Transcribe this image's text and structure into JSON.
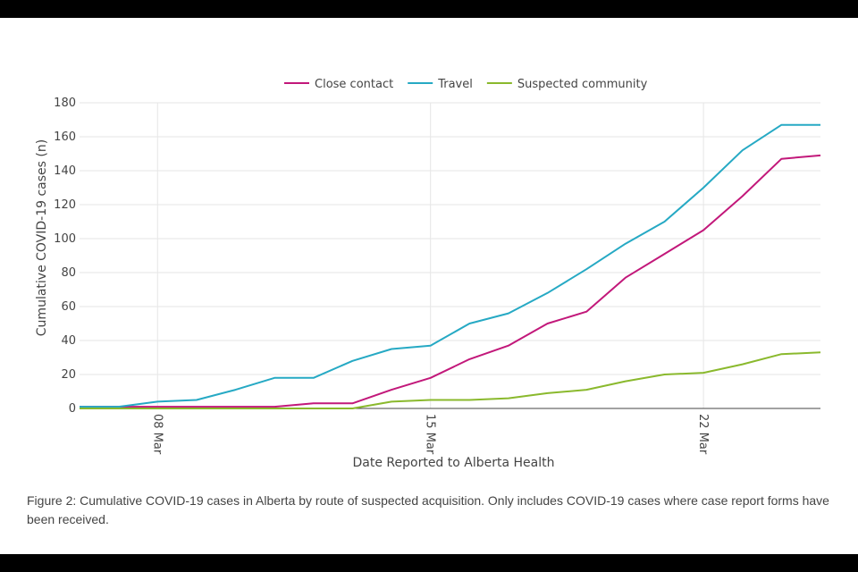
{
  "chart_data": {
    "type": "line",
    "title": "",
    "xlabel": "Date Reported to Alberta Health",
    "ylabel": "Cumulative COVID-19 cases (n)",
    "ylim": [
      0,
      180
    ],
    "xlim": [
      "2020-03-06",
      "2020-03-25"
    ],
    "yticks": [
      0,
      20,
      40,
      60,
      80,
      100,
      120,
      140,
      160,
      180
    ],
    "xticks": [
      {
        "date": "2020-03-08",
        "label": "08 Mar"
      },
      {
        "date": "2020-03-15",
        "label": "15 Mar"
      },
      {
        "date": "2020-03-22",
        "label": "22 Mar"
      }
    ],
    "grid": true,
    "legend_position": "top",
    "x": [
      "2020-03-06",
      "2020-03-07",
      "2020-03-08",
      "2020-03-09",
      "2020-03-10",
      "2020-03-11",
      "2020-03-12",
      "2020-03-13",
      "2020-03-14",
      "2020-03-15",
      "2020-03-16",
      "2020-03-17",
      "2020-03-18",
      "2020-03-19",
      "2020-03-20",
      "2020-03-21",
      "2020-03-22",
      "2020-03-23",
      "2020-03-24",
      "2020-03-25"
    ],
    "series": [
      {
        "name": "Close contact",
        "color": "#c2187a",
        "values": [
          1,
          1,
          1,
          1,
          1,
          1,
          3,
          3,
          11,
          18,
          29,
          37,
          50,
          57,
          77,
          91,
          105,
          125,
          147,
          149
        ]
      },
      {
        "name": "Travel",
        "color": "#26a9c4",
        "values": [
          1,
          1,
          4,
          5,
          11,
          18,
          18,
          28,
          35,
          37,
          50,
          56,
          68,
          82,
          97,
          110,
          130,
          152,
          167,
          167
        ]
      },
      {
        "name": "Suspected community",
        "color": "#8ab92d",
        "values": [
          0,
          0,
          0,
          0,
          0,
          0,
          0,
          0,
          4,
          5,
          5,
          6,
          9,
          11,
          16,
          20,
          21,
          26,
          32,
          33
        ]
      }
    ]
  },
  "caption": "Figure 2: Cumulative COVID-19 cases in Alberta by route of suspected acquisition. Only includes COVID-19 cases where case report forms have been received."
}
